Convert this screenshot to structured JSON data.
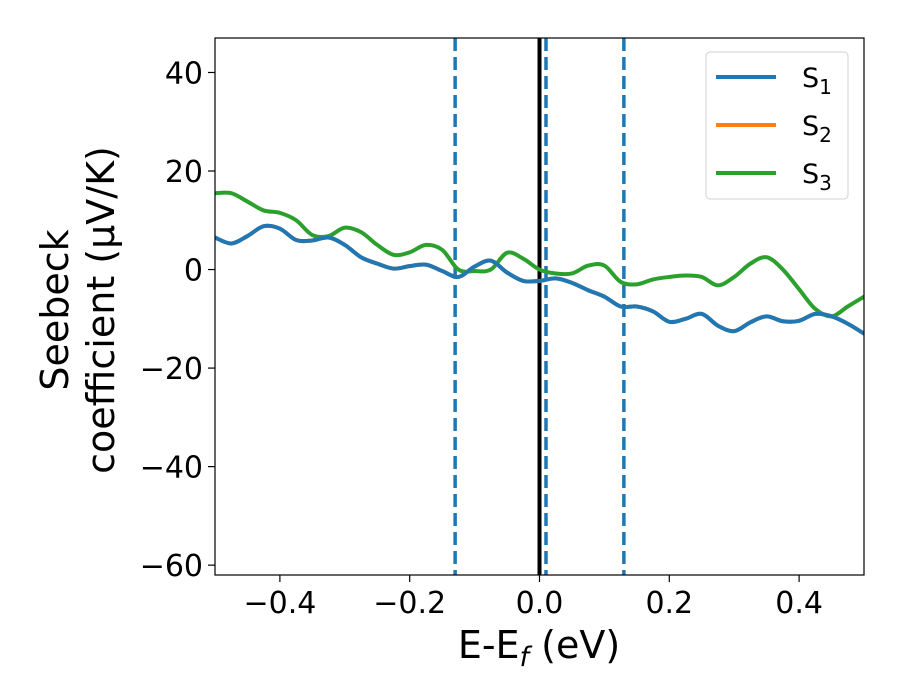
{
  "chart_data": {
    "type": "line",
    "xlabel": "E-E",
    "xlabel_sub": "f",
    "xlabel_unit": " (eV)",
    "ylabel_line1": "Seebeck",
    "ylabel_line2": "coefficient  (μV/K)",
    "xlim": [
      -0.5,
      0.5
    ],
    "ylim": [
      -62,
      47
    ],
    "xticks": [
      -0.4,
      -0.2,
      0.0,
      0.2,
      0.4
    ],
    "xtick_labels": [
      "−0.4",
      "−0.2",
      "0.0",
      "0.2",
      "0.4"
    ],
    "yticks": [
      40,
      20,
      0,
      -20,
      -40,
      -60
    ],
    "ytick_labels": [
      "40",
      "20",
      "0",
      "−20",
      "−40",
      "−60"
    ],
    "grid": false,
    "legend_position": "top-right",
    "vertical_lines": [
      {
        "x": -0.13,
        "style": "dashed",
        "color": "#1f77b4"
      },
      {
        "x": 0.0,
        "style": "solid",
        "color": "#000000"
      },
      {
        "x": 0.01,
        "style": "dashed",
        "color": "#1f77b4"
      },
      {
        "x": 0.13,
        "style": "dashed",
        "color": "#1f77b4"
      }
    ],
    "series": [
      {
        "name": "S",
        "sub": "1",
        "color": "#1f77b4",
        "x": [
          -0.5,
          -0.475,
          -0.45,
          -0.425,
          -0.4,
          -0.375,
          -0.35,
          -0.325,
          -0.3,
          -0.275,
          -0.25,
          -0.225,
          -0.2,
          -0.175,
          -0.15,
          -0.125,
          -0.1,
          -0.075,
          -0.05,
          -0.025,
          0.0,
          0.025,
          0.05,
          0.075,
          0.1,
          0.125,
          0.15,
          0.175,
          0.2,
          0.225,
          0.25,
          0.275,
          0.3,
          0.325,
          0.35,
          0.375,
          0.4,
          0.425,
          0.45,
          0.475,
          0.5
        ],
        "y": [
          6.5,
          5.3,
          6.8,
          8.8,
          8.3,
          6.0,
          5.9,
          6.5,
          5.0,
          2.5,
          1.2,
          0.2,
          0.7,
          1.0,
          -0.3,
          -1.5,
          0.6,
          1.8,
          -0.6,
          -2.3,
          -2.3,
          -1.8,
          -2.7,
          -4.2,
          -5.5,
          -7.5,
          -7.5,
          -8.5,
          -10.6,
          -10.0,
          -9.0,
          -11.4,
          -12.5,
          -10.7,
          -9.5,
          -10.5,
          -10.4,
          -9.0,
          -9.5,
          -11.0,
          -13.0
        ]
      },
      {
        "name": "S",
        "sub": "2",
        "color": "#ff7f0e",
        "x": [
          -0.5,
          -0.475,
          -0.45,
          -0.425,
          -0.4,
          -0.375,
          -0.35,
          -0.325,
          -0.3,
          -0.275,
          -0.25,
          -0.225,
          -0.2,
          -0.175,
          -0.15,
          -0.125,
          -0.1,
          -0.075,
          -0.05,
          -0.025,
          0.0,
          0.025,
          0.05,
          0.075,
          0.1,
          0.125,
          0.15,
          0.175,
          0.2,
          0.225,
          0.25,
          0.275,
          0.3,
          0.325,
          0.35,
          0.375,
          0.4,
          0.425,
          0.45,
          0.475,
          0.5
        ],
        "y": [
          6.5,
          5.3,
          6.8,
          8.8,
          8.3,
          6.0,
          5.9,
          6.5,
          5.0,
          2.5,
          1.2,
          0.2,
          0.7,
          1.0,
          -0.3,
          -1.5,
          0.6,
          1.8,
          -0.6,
          -2.3,
          -2.3,
          -1.8,
          -2.7,
          -4.2,
          -5.5,
          -7.5,
          -7.5,
          -8.5,
          -10.6,
          -10.0,
          -9.0,
          -11.4,
          -12.5,
          -10.7,
          -9.5,
          -10.5,
          -10.4,
          -9.0,
          -9.5,
          -11.0,
          -13.0
        ]
      },
      {
        "name": "S",
        "sub": "3",
        "color": "#2ca02c",
        "x": [
          -0.5,
          -0.475,
          -0.45,
          -0.425,
          -0.4,
          -0.375,
          -0.35,
          -0.325,
          -0.3,
          -0.275,
          -0.25,
          -0.225,
          -0.2,
          -0.175,
          -0.15,
          -0.125,
          -0.1,
          -0.075,
          -0.05,
          -0.025,
          0.0,
          0.025,
          0.05,
          0.075,
          0.1,
          0.125,
          0.15,
          0.175,
          0.2,
          0.225,
          0.25,
          0.275,
          0.3,
          0.325,
          0.35,
          0.375,
          0.4,
          0.425,
          0.45,
          0.475,
          0.5
        ],
        "y": [
          15.5,
          15.5,
          13.8,
          12.0,
          11.5,
          10.0,
          7.0,
          6.8,
          8.5,
          7.6,
          5.0,
          3.0,
          3.5,
          5.0,
          4.0,
          0.0,
          -0.3,
          0.0,
          3.4,
          2.2,
          0.0,
          -0.8,
          -0.8,
          0.8,
          0.8,
          -2.5,
          -3.0,
          -2.0,
          -1.5,
          -1.2,
          -1.5,
          -3.2,
          -1.5,
          1.2,
          2.5,
          0.0,
          -4.0,
          -8.0,
          -9.5,
          -7.5,
          -5.5
        ]
      }
    ]
  }
}
